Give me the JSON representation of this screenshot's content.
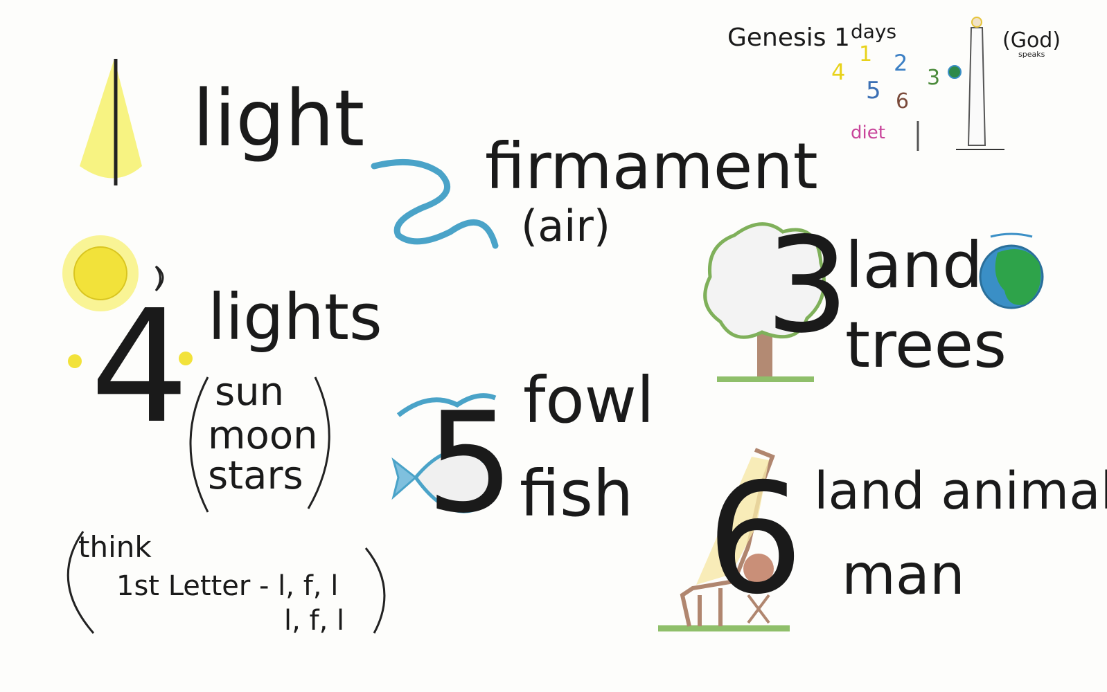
{
  "header": {
    "title": "Genesis 1",
    "subtitle": "days",
    "numbers": [
      "4",
      "1",
      "2",
      "5",
      "6",
      "3"
    ],
    "diet": "diet",
    "god": "(God)",
    "speaks": "speaks"
  },
  "days": [
    {
      "number": "1",
      "words": [
        "light"
      ]
    },
    {
      "number": "2",
      "words": [
        "firmament",
        "(air)"
      ]
    },
    {
      "number": "3",
      "words": [
        "land",
        "trees"
      ]
    },
    {
      "number": "4",
      "words": [
        "lights",
        "sun",
        "moon",
        "stars"
      ]
    },
    {
      "number": "5",
      "words": [
        "fowl",
        "fish"
      ]
    },
    {
      "number": "6",
      "words": [
        "land animals",
        "man"
      ]
    }
  ],
  "note": {
    "think": "think",
    "line1": "1st Letter - l, f, l",
    "line2": "l, f, l"
  }
}
